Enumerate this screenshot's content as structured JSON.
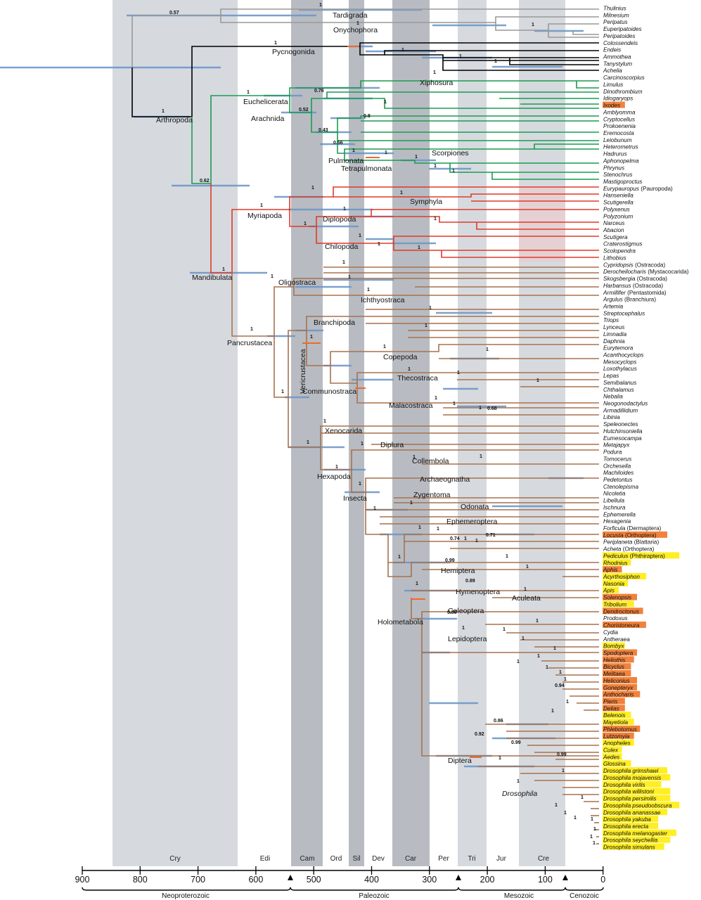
{
  "colors": {
    "background": "#ffffff",
    "band_light": "#d6dadf",
    "band_dark": "#b8bcc2",
    "ci_bar": "#6e97c8",
    "calibration": "#ef6a2a",
    "tardigrada_onychophora": "#999999",
    "pycnogonida": "#000000",
    "chelicerata": "#1a9b50",
    "myriapoda": "#e03a2a",
    "pancrustacea": "#a8714d",
    "highlight_yellow": "#ffee22",
    "highlight_orange": "#f0823c"
  },
  "periods": [
    "Cry",
    "Edi",
    "Cam",
    "Ord",
    "Sil",
    "Dev",
    "Car",
    "Per",
    "Tri",
    "Jur",
    "Cre"
  ],
  "axis_ticks": [
    "900",
    "800",
    "700",
    "600",
    "500",
    "400",
    "300",
    "200",
    "100",
    "0"
  ],
  "eras": [
    "Neoproterozoic",
    "Paleozoic",
    "Mesozoic",
    "Cenozoic"
  ],
  "taxa": [
    {
      "name": "Thulinius",
      "note": "",
      "highlight": ""
    },
    {
      "name": "Milnesium",
      "note": "",
      "highlight": ""
    },
    {
      "name": "Peripatus",
      "note": "",
      "highlight": ""
    },
    {
      "name": "Euperipatoides",
      "note": "",
      "highlight": ""
    },
    {
      "name": "Peripatoides",
      "note": "",
      "highlight": ""
    },
    {
      "name": "Colossendeis",
      "note": "",
      "highlight": ""
    },
    {
      "name": "Endeis",
      "note": "",
      "highlight": ""
    },
    {
      "name": "Ammothea",
      "note": "",
      "highlight": ""
    },
    {
      "name": "Tanystylum",
      "note": "",
      "highlight": ""
    },
    {
      "name": "Achelia",
      "note": "",
      "highlight": ""
    },
    {
      "name": "Carcinoscorpius",
      "note": "",
      "highlight": ""
    },
    {
      "name": "Limulus",
      "note": "",
      "highlight": ""
    },
    {
      "name": "Dinothrombium",
      "note": "",
      "highlight": ""
    },
    {
      "name": "Idiogaryops",
      "note": "",
      "highlight": ""
    },
    {
      "name": "Ixodes",
      "note": "",
      "highlight": "orange"
    },
    {
      "name": "Amblyomma",
      "note": "",
      "highlight": ""
    },
    {
      "name": "Cryptocellus",
      "note": "",
      "highlight": ""
    },
    {
      "name": "Prokoenenia",
      "note": "",
      "highlight": ""
    },
    {
      "name": "Eremocosta",
      "note": "",
      "highlight": ""
    },
    {
      "name": "Leiobunum",
      "note": "",
      "highlight": ""
    },
    {
      "name": "Heterometrus",
      "note": "",
      "highlight": ""
    },
    {
      "name": "Hadrurus",
      "note": "",
      "highlight": ""
    },
    {
      "name": "Aphonopelma",
      "note": "",
      "highlight": ""
    },
    {
      "name": "Phrynus",
      "note": "",
      "highlight": ""
    },
    {
      "name": "Stenochrus",
      "note": "",
      "highlight": ""
    },
    {
      "name": "Mastigoproctus",
      "note": "",
      "highlight": ""
    },
    {
      "name": "Eurypauropus",
      "note": " (Pauropoda)",
      "highlight": ""
    },
    {
      "name": "Hanseniella",
      "note": "",
      "highlight": ""
    },
    {
      "name": "Scutigerella",
      "note": "",
      "highlight": ""
    },
    {
      "name": "Polyxenus",
      "note": "",
      "highlight": ""
    },
    {
      "name": "Polyzonium",
      "note": "",
      "highlight": ""
    },
    {
      "name": "Narceus",
      "note": "",
      "highlight": ""
    },
    {
      "name": "Abacion",
      "note": "",
      "highlight": ""
    },
    {
      "name": "Scutigera",
      "note": "",
      "highlight": ""
    },
    {
      "name": "Craterostigmus",
      "note": "",
      "highlight": ""
    },
    {
      "name": "Scolopendra",
      "note": "",
      "highlight": ""
    },
    {
      "name": "Lithobius",
      "note": "",
      "highlight": ""
    },
    {
      "name": "Cypridopsis",
      "note": " (Ostracoda)",
      "highlight": ""
    },
    {
      "name": "Derocheilocharis",
      "note": " (Mystacocarida)",
      "highlight": ""
    },
    {
      "name": "Skogsbergia",
      "note": " (Ostracoda)",
      "highlight": ""
    },
    {
      "name": "Harbansus",
      "note": " (Ostracoda)",
      "highlight": ""
    },
    {
      "name": "Armillifer",
      "note": " (Pentastomida)",
      "highlight": ""
    },
    {
      "name": "Argulus",
      "note": " (Branchiura)",
      "highlight": ""
    },
    {
      "name": "Artemia",
      "note": "",
      "highlight": ""
    },
    {
      "name": "Streptocephalus",
      "note": "",
      "highlight": ""
    },
    {
      "name": "Triops",
      "note": "",
      "highlight": ""
    },
    {
      "name": "Lynceus",
      "note": "",
      "highlight": ""
    },
    {
      "name": "Limnadia",
      "note": "",
      "highlight": ""
    },
    {
      "name": "Daphnia",
      "note": "",
      "highlight": ""
    },
    {
      "name": "Eurytemora",
      "note": "",
      "highlight": ""
    },
    {
      "name": "Acanthocyclops",
      "note": "",
      "highlight": ""
    },
    {
      "name": "Mesocyclops",
      "note": "",
      "highlight": ""
    },
    {
      "name": "Loxothylacus",
      "note": "",
      "highlight": ""
    },
    {
      "name": "Lepas",
      "note": "",
      "highlight": ""
    },
    {
      "name": "Semibalanus",
      "note": "",
      "highlight": ""
    },
    {
      "name": "Chthalamus",
      "note": "",
      "highlight": ""
    },
    {
      "name": "Nebalia",
      "note": "",
      "highlight": ""
    },
    {
      "name": "Neogonodactylus",
      "note": "",
      "highlight": ""
    },
    {
      "name": "Armadillidium",
      "note": "",
      "highlight": ""
    },
    {
      "name": "Libinia",
      "note": "",
      "highlight": ""
    },
    {
      "name": "Speleonectes",
      "note": "",
      "highlight": ""
    },
    {
      "name": "Hutchinsoniella",
      "note": "",
      "highlight": ""
    },
    {
      "name": "Eumesocampa",
      "note": "",
      "highlight": ""
    },
    {
      "name": "Metajapyx",
      "note": "",
      "highlight": ""
    },
    {
      "name": "Podura",
      "note": "",
      "highlight": ""
    },
    {
      "name": "Tomocerus",
      "note": "",
      "highlight": ""
    },
    {
      "name": "Orchesella",
      "note": "",
      "highlight": ""
    },
    {
      "name": "Machiloides",
      "note": "",
      "highlight": ""
    },
    {
      "name": "Pedetontus",
      "note": "",
      "highlight": ""
    },
    {
      "name": "Ctenolepisma",
      "note": "",
      "highlight": ""
    },
    {
      "name": "Nicoletia",
      "note": "",
      "highlight": ""
    },
    {
      "name": "Libellula",
      "note": "",
      "highlight": ""
    },
    {
      "name": "Ischnura",
      "note": "",
      "highlight": ""
    },
    {
      "name": "Ephemerella",
      "note": "",
      "highlight": ""
    },
    {
      "name": "Hexagenia",
      "note": "",
      "highlight": ""
    },
    {
      "name": "Forficula",
      "note": " (Dermaptera)",
      "highlight": ""
    },
    {
      "name": "Locusta",
      "note": " (Orthoptera)",
      "highlight": "orange"
    },
    {
      "name": "Periplaneta",
      "note": " (Blattaria)",
      "highlight": ""
    },
    {
      "name": "Acheta",
      "note": " (Orthoptera)",
      "highlight": ""
    },
    {
      "name": "Pediculus",
      "note": " (Phthiraptera)",
      "highlight": "yellow"
    },
    {
      "name": "Rhodnius",
      "note": "",
      "highlight": "yellow"
    },
    {
      "name": "Aphis",
      "note": "",
      "highlight": "orange"
    },
    {
      "name": "Acyrthosiphon",
      "note": "",
      "highlight": "yellow"
    },
    {
      "name": "Nasonia",
      "note": "",
      "highlight": "yellow"
    },
    {
      "name": "Apis",
      "note": "",
      "highlight": "yellow"
    },
    {
      "name": "Solenopsis",
      "note": "",
      "highlight": "orange"
    },
    {
      "name": "Tribolium",
      "note": "",
      "highlight": "yellow"
    },
    {
      "name": "Dendroctonus",
      "note": "",
      "highlight": "orange"
    },
    {
      "name": "Prodoxus",
      "note": "",
      "highlight": ""
    },
    {
      "name": "Choristoneura",
      "note": "",
      "highlight": "orange"
    },
    {
      "name": "Cydia",
      "note": "",
      "highlight": ""
    },
    {
      "name": "Antheraea",
      "note": "",
      "highlight": ""
    },
    {
      "name": "Bombyx",
      "note": "",
      "highlight": "yellow"
    },
    {
      "name": "Spodoptera",
      "note": "",
      "highlight": "orange"
    },
    {
      "name": "Heliothis",
      "note": "",
      "highlight": "orange"
    },
    {
      "name": "Bicyclus",
      "note": "",
      "highlight": "orange"
    },
    {
      "name": "Melitaea",
      "note": "",
      "highlight": "orange"
    },
    {
      "name": "Heliconius",
      "note": "",
      "highlight": "orange"
    },
    {
      "name": "Gonepteryx",
      "note": "",
      "highlight": "orange"
    },
    {
      "name": "Anthocharis",
      "note": "",
      "highlight": "orange"
    },
    {
      "name": "Pieris",
      "note": "",
      "highlight": "orange"
    },
    {
      "name": "Delias",
      "note": "",
      "highlight": "orange"
    },
    {
      "name": "Belenois",
      "note": "",
      "highlight": "yellow"
    },
    {
      "name": "Mayetiola",
      "note": "",
      "highlight": "yellow"
    },
    {
      "name": "Phlebotomus",
      "note": "",
      "highlight": "orange"
    },
    {
      "name": "Lutzomyia",
      "note": "",
      "highlight": "orange"
    },
    {
      "name": "Anopheles",
      "note": "",
      "highlight": "yellow"
    },
    {
      "name": "Culex",
      "note": "",
      "highlight": "yellow"
    },
    {
      "name": "Aedes",
      "note": "",
      "highlight": "yellow"
    },
    {
      "name": "Glossina",
      "note": "",
      "highlight": "yellow"
    },
    {
      "name": "Drosophila grimshawi",
      "note": "",
      "highlight": "yellow"
    },
    {
      "name": "Drosophila mojavensis",
      "note": "",
      "highlight": "yellow"
    },
    {
      "name": "Drosophila virilis",
      "note": "",
      "highlight": "yellow"
    },
    {
      "name": "Drosophila willistoni",
      "note": "",
      "highlight": "yellow"
    },
    {
      "name": "Drosophila persimilis",
      "note": "",
      "highlight": "yellow"
    },
    {
      "name": "Drosophila pseudoobscura",
      "note": "",
      "highlight": "yellow"
    },
    {
      "name": "Drosophila ananassae",
      "note": "",
      "highlight": "yellow"
    },
    {
      "name": "Drosophila yakuba",
      "note": "",
      "highlight": "yellow"
    },
    {
      "name": "Drosophila erecta",
      "note": "",
      "highlight": "yellow"
    },
    {
      "name": "Drosophila melanogaster",
      "note": "",
      "highlight": "yellow"
    },
    {
      "name": "Drosophila seychellia",
      "note": "",
      "highlight": "yellow"
    },
    {
      "name": "Drosophila simulans",
      "note": "",
      "highlight": "yellow"
    }
  ],
  "clades": [
    {
      "name": "Tardigrada"
    },
    {
      "name": "Onychophora"
    },
    {
      "name": "Pycnogonida"
    },
    {
      "name": "Arthropoda"
    },
    {
      "name": "Euchelicerata"
    },
    {
      "name": "Xiphosura"
    },
    {
      "name": "Arachnida"
    },
    {
      "name": "Pulmonata"
    },
    {
      "name": "Scorpiones"
    },
    {
      "name": "Tetrapulmonata"
    },
    {
      "name": "Symphyla"
    },
    {
      "name": "Myriapoda"
    },
    {
      "name": "Diplopoda"
    },
    {
      "name": "Chilopoda"
    },
    {
      "name": "Mandibulata"
    },
    {
      "name": "Oligostraca"
    },
    {
      "name": "Ichthyostraca"
    },
    {
      "name": "Branchipoda"
    },
    {
      "name": "Pancrustacea"
    },
    {
      "name": "Copepoda"
    },
    {
      "name": "Vericrustacea"
    },
    {
      "name": "Thecostraca"
    },
    {
      "name": "Communostraca"
    },
    {
      "name": "Malacostraca"
    },
    {
      "name": "Xenocarida"
    },
    {
      "name": "Diplura"
    },
    {
      "name": "Collembola"
    },
    {
      "name": "Hexapoda"
    },
    {
      "name": "Archaeognatha"
    },
    {
      "name": "Insecta"
    },
    {
      "name": "Zygentoma"
    },
    {
      "name": "Odonata"
    },
    {
      "name": "Ephemeroptera"
    },
    {
      "name": "Hemiptera"
    },
    {
      "name": "Hymenoptera"
    },
    {
      "name": "Aculeata"
    },
    {
      "name": "Coleoptera"
    },
    {
      "name": "Holometabola"
    },
    {
      "name": "Lepidoptera"
    },
    {
      "name": "Diptera"
    },
    {
      "name": "Drosophila"
    }
  ],
  "support_values": [
    "0.57",
    "1",
    "1",
    "1",
    "1",
    "1",
    "1",
    "1",
    "1",
    "1",
    "0.76",
    "1",
    "0.52",
    "0.8",
    "0.43",
    "0.56",
    "1",
    "1",
    "1",
    "1",
    "1",
    "1",
    "0.62",
    "1",
    "1",
    "1",
    "1",
    "1",
    "1",
    "1",
    "1",
    "1",
    "1",
    "1",
    "1",
    "1",
    "1",
    "1",
    "1",
    "1",
    "1",
    "1",
    "1",
    "1",
    "1",
    "1",
    "1",
    "1",
    "1",
    "1",
    "0.68",
    "1",
    "1",
    "1",
    "1",
    "1",
    "1",
    "1",
    "1",
    "1",
    "1",
    "1",
    "1",
    "1",
    "1",
    "1",
    "0.74",
    "0.99",
    "0.71",
    "1",
    "0.89",
    "1",
    "1",
    "0.56",
    "1",
    "1",
    "1",
    "1",
    "1",
    "1",
    "1",
    "1",
    "1",
    "1",
    "0.94",
    "1",
    "1",
    "0.86",
    "0.92",
    "0.99",
    "0.99",
    "1",
    "1",
    "1",
    "1",
    "1",
    "1",
    "1",
    "1",
    "1",
    "1",
    "1"
  ]
}
